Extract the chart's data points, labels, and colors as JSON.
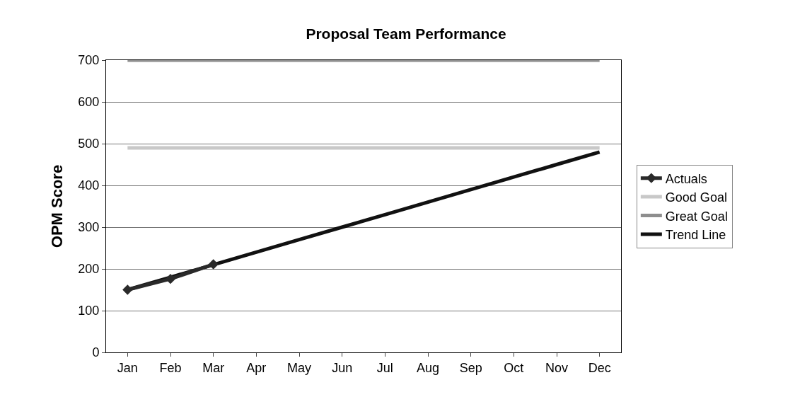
{
  "chart_data": {
    "type": "line",
    "title": "Proposal Team Performance",
    "ylabel": "OPM Score",
    "categories": [
      "Jan",
      "Feb",
      "Mar",
      "Apr",
      "May",
      "Jun",
      "Jul",
      "Aug",
      "Sep",
      "Oct",
      "Nov",
      "Dec"
    ],
    "series": [
      {
        "name": "Actuals",
        "color": "#2a2a2a",
        "marker": "diamond",
        "values": [
          150,
          176,
          211,
          null,
          null,
          null,
          null,
          null,
          null,
          null,
          null,
          null
        ]
      },
      {
        "name": "Good Goal",
        "color": "#c8c8c8",
        "marker": "none",
        "values": [
          490,
          490,
          490,
          490,
          490,
          490,
          490,
          490,
          490,
          490,
          490,
          490
        ]
      },
      {
        "name": "Great Goal",
        "color": "#8e8e8e",
        "marker": "none",
        "values": [
          700,
          700,
          700,
          700,
          700,
          700,
          700,
          700,
          700,
          700,
          700,
          700
        ]
      },
      {
        "name": "Trend Line",
        "color": "#111111",
        "marker": "none",
        "values": [
          150,
          180,
          210,
          240,
          270,
          300,
          330,
          360,
          390,
          420,
          450,
          480
        ]
      }
    ],
    "ylim": [
      0,
      700
    ],
    "yticks": [
      0,
      100,
      200,
      300,
      400,
      500,
      600,
      700
    ],
    "grid": "y",
    "legend": "right",
    "line_style": "solid"
  }
}
